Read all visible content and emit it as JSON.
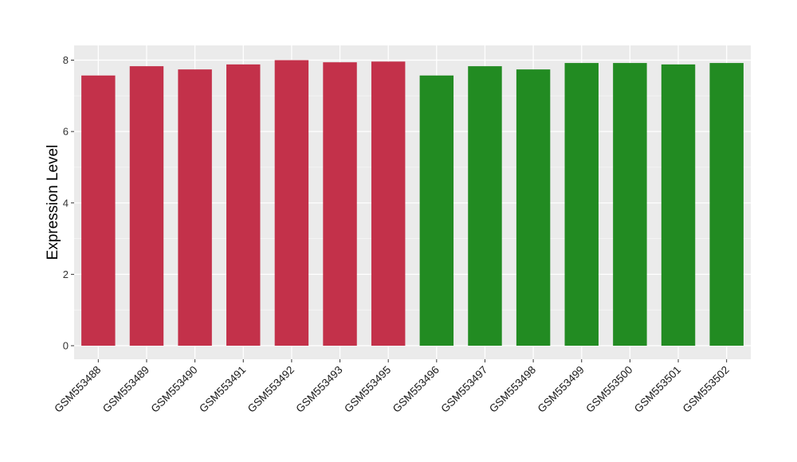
{
  "chart_data": {
    "type": "bar",
    "title": "",
    "xlabel": "",
    "ylabel": "Expression Level",
    "ylim": [
      0,
      8
    ],
    "yticks": [
      0,
      2,
      4,
      6,
      8
    ],
    "grid": true,
    "categories": [
      "GSM553488",
      "GSM553489",
      "GSM553490",
      "GSM553491",
      "GSM553492",
      "GSM553493",
      "GSM553495",
      "GSM553496",
      "GSM553497",
      "GSM553498",
      "GSM553499",
      "GSM553500",
      "GSM553501",
      "GSM553502"
    ],
    "values": [
      7.57,
      7.83,
      7.74,
      7.88,
      8.0,
      7.94,
      7.96,
      7.57,
      7.83,
      7.74,
      7.92,
      7.92,
      7.88,
      7.92
    ],
    "groups": [
      "red",
      "red",
      "red",
      "red",
      "red",
      "red",
      "red",
      "green",
      "green",
      "green",
      "green",
      "green",
      "green",
      "green"
    ],
    "colors": {
      "red": "#c3314a",
      "green": "#228b22"
    }
  }
}
